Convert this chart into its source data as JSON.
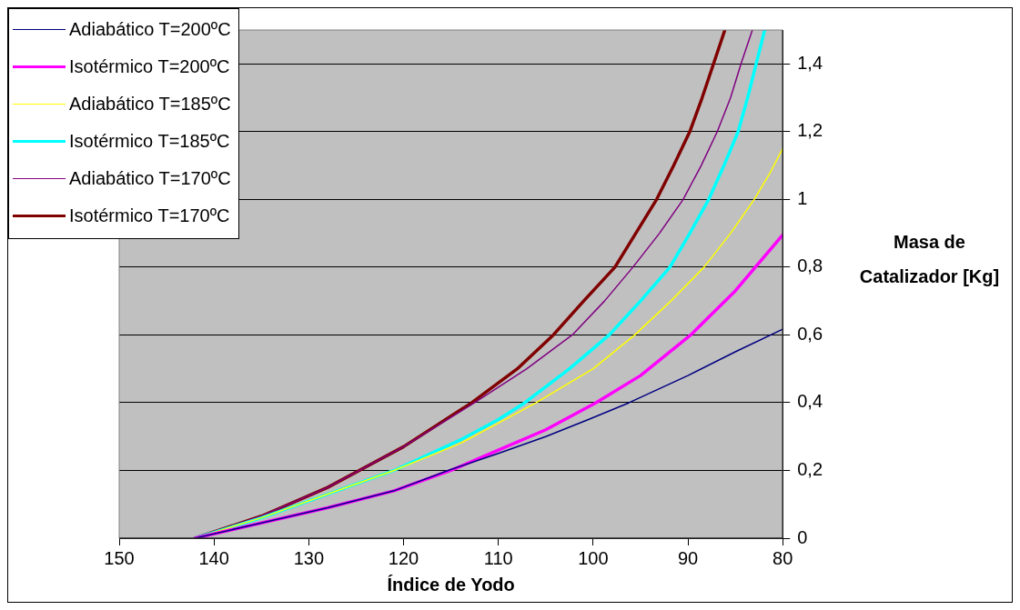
{
  "chart_data": {
    "type": "line",
    "xlabel": "Índice de Yodo",
    "ylabel": "Masa de Catalizador [Kg]",
    "xlim": [
      150,
      80
    ],
    "xticks": [
      150,
      140,
      130,
      120,
      110,
      100,
      90,
      80
    ],
    "ylim": [
      0,
      1.5
    ],
    "yticks": [
      0,
      {
        "value": 0.2,
        "label": "0,2"
      },
      {
        "value": 0.4,
        "label": "0,4"
      },
      {
        "value": 0.6,
        "label": "0,6"
      },
      {
        "value": 0.8,
        "label": "0,8"
      },
      1,
      {
        "value": 1.2,
        "label": "1,2"
      },
      {
        "value": 1.4,
        "label": "1,4"
      }
    ],
    "grid": "y",
    "legend": "top left",
    "marker": "none",
    "line_style": "solid",
    "series": [
      {
        "name": "Adiabático T=200ºC",
        "color": "#000080",
        "x": [
          142,
          135,
          128,
          121,
          115.3,
          110,
          105,
          100.5,
          96.2,
          90,
          85,
          80
        ],
        "values": [
          0,
          0.045,
          0.09,
          0.14,
          0.2,
          0.25,
          0.3,
          0.35,
          0.4,
          0.48,
          0.55,
          0.617
        ]
      },
      {
        "name": "Isotérmico T=200ºC",
        "color": "#ff00ff",
        "x": [
          142,
          135,
          128,
          121,
          115,
          110,
          105,
          99.7,
          95,
          89.7,
          85,
          80
        ],
        "values": [
          0,
          0.045,
          0.09,
          0.14,
          0.2,
          0.26,
          0.32,
          0.4,
          0.48,
          0.6,
          0.73,
          0.895
        ]
      },
      {
        "name": "Adiabático T=185ºC",
        "color": "#ffff00",
        "x": [
          142,
          135,
          128,
          121,
          114,
          110,
          106,
          100,
          95.6,
          91.8,
          88.3,
          85.5,
          83,
          81.3,
          80
        ],
        "values": [
          0,
          0.06,
          0.13,
          0.2,
          0.28,
          0.34,
          0.4,
          0.5,
          0.6,
          0.7,
          0.8,
          0.9,
          1.0,
          1.08,
          1.15
        ]
      },
      {
        "name": "Isotérmico T=185ºC",
        "color": "#00ffff",
        "x": [
          142,
          135,
          128,
          121,
          114,
          110,
          107.2,
          102.5,
          98.3,
          95,
          91.9,
          89.8,
          87.8,
          86.2,
          84.7,
          83.7,
          82.8,
          81.9
        ],
        "values": [
          0,
          0.06,
          0.13,
          0.2,
          0.29,
          0.35,
          0.4,
          0.5,
          0.6,
          0.7,
          0.8,
          0.9,
          1.0,
          1.1,
          1.2,
          1.3,
          1.4,
          1.5
        ]
      },
      {
        "name": "Adiabático T=170ºC",
        "color": "#800080",
        "x": [
          142,
          135,
          128,
          120,
          112.5,
          107,
          102.2,
          98.8,
          95.8,
          93,
          90.5,
          88.6,
          86.9,
          85.5,
          84.4,
          83.2
        ],
        "values": [
          0,
          0.065,
          0.15,
          0.27,
          0.4,
          0.5,
          0.6,
          0.7,
          0.8,
          0.9,
          1.0,
          1.1,
          1.2,
          1.3,
          1.4,
          1.5
        ]
      },
      {
        "name": "Isotérmico T=170ºC",
        "color": "#800000",
        "x": [
          142,
          135,
          128,
          120,
          112.8,
          108,
          104.2,
          101,
          97.7,
          95.5,
          93.3,
          91.5,
          89.8,
          88.5,
          87.3,
          86.1
        ],
        "values": [
          0,
          0.065,
          0.15,
          0.27,
          0.4,
          0.5,
          0.6,
          0.7,
          0.8,
          0.9,
          1.0,
          1.1,
          1.2,
          1.3,
          1.4,
          1.5
        ]
      }
    ]
  }
}
